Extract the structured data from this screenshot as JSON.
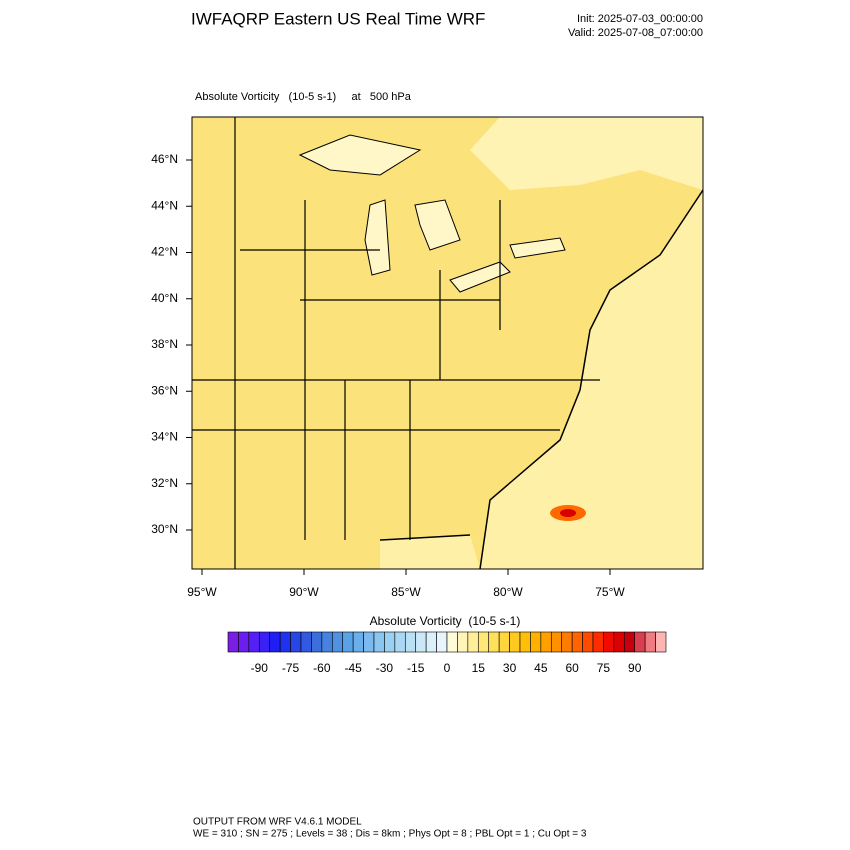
{
  "header": {
    "title": "IWFAQRP Eastern US Real Time WRF",
    "init": "Init: 2025-07-03_00:00:00",
    "valid": "Valid: 2025-07-08_07:00:00"
  },
  "map": {
    "subtitle": "Absolute Vorticity   (10-5 s-1)     at   500 hPa",
    "lat_labels": [
      "46°N",
      "44°N",
      "42°N",
      "40°N",
      "38°N",
      "36°N",
      "34°N",
      "32°N",
      "30°N"
    ],
    "lon_labels": [
      "95°W",
      "90°W",
      "85°W",
      "80°W",
      "75°W"
    ]
  },
  "colorbar": {
    "title": "Absolute Vorticity  (10-5 s-1)",
    "labels": [
      -90,
      -75,
      -60,
      -45,
      -30,
      -15,
      0,
      15,
      30,
      45,
      60,
      75,
      90
    ],
    "colors": [
      "#7a1ee6",
      "#6a1ff0",
      "#5520f5",
      "#3a20f5",
      "#1e1ef5",
      "#1e32f0",
      "#2846e6",
      "#325ae0",
      "#3c6edc",
      "#4682de",
      "#5092e2",
      "#5aa2e6",
      "#6aaeea",
      "#7abaee",
      "#8ac6f0",
      "#9ad0f2",
      "#aad8f4",
      "#bae0f6",
      "#cae8f8",
      "#daf0fa",
      "#e8f6fc",
      "#fffbd8",
      "#fff5b8",
      "#ffef98",
      "#ffe878",
      "#ffe05a",
      "#ffd63c",
      "#ffca20",
      "#ffbe08",
      "#ffb000",
      "#ffa000",
      "#ff9000",
      "#ff7c00",
      "#ff6400",
      "#ff4a00",
      "#ff2c00",
      "#f20a00",
      "#dc0000",
      "#c40010",
      "#d84050",
      "#ee7c80",
      "#ffb4b4"
    ]
  },
  "footer": {
    "line1": "OUTPUT FROM WRF V4.6.1 MODEL",
    "line2": "WE = 310 ; SN = 275 ; Levels = 38 ; Dis = 8km ; Phys Opt = 8 ; PBL Opt = 1 ; Cu Opt = 3"
  }
}
